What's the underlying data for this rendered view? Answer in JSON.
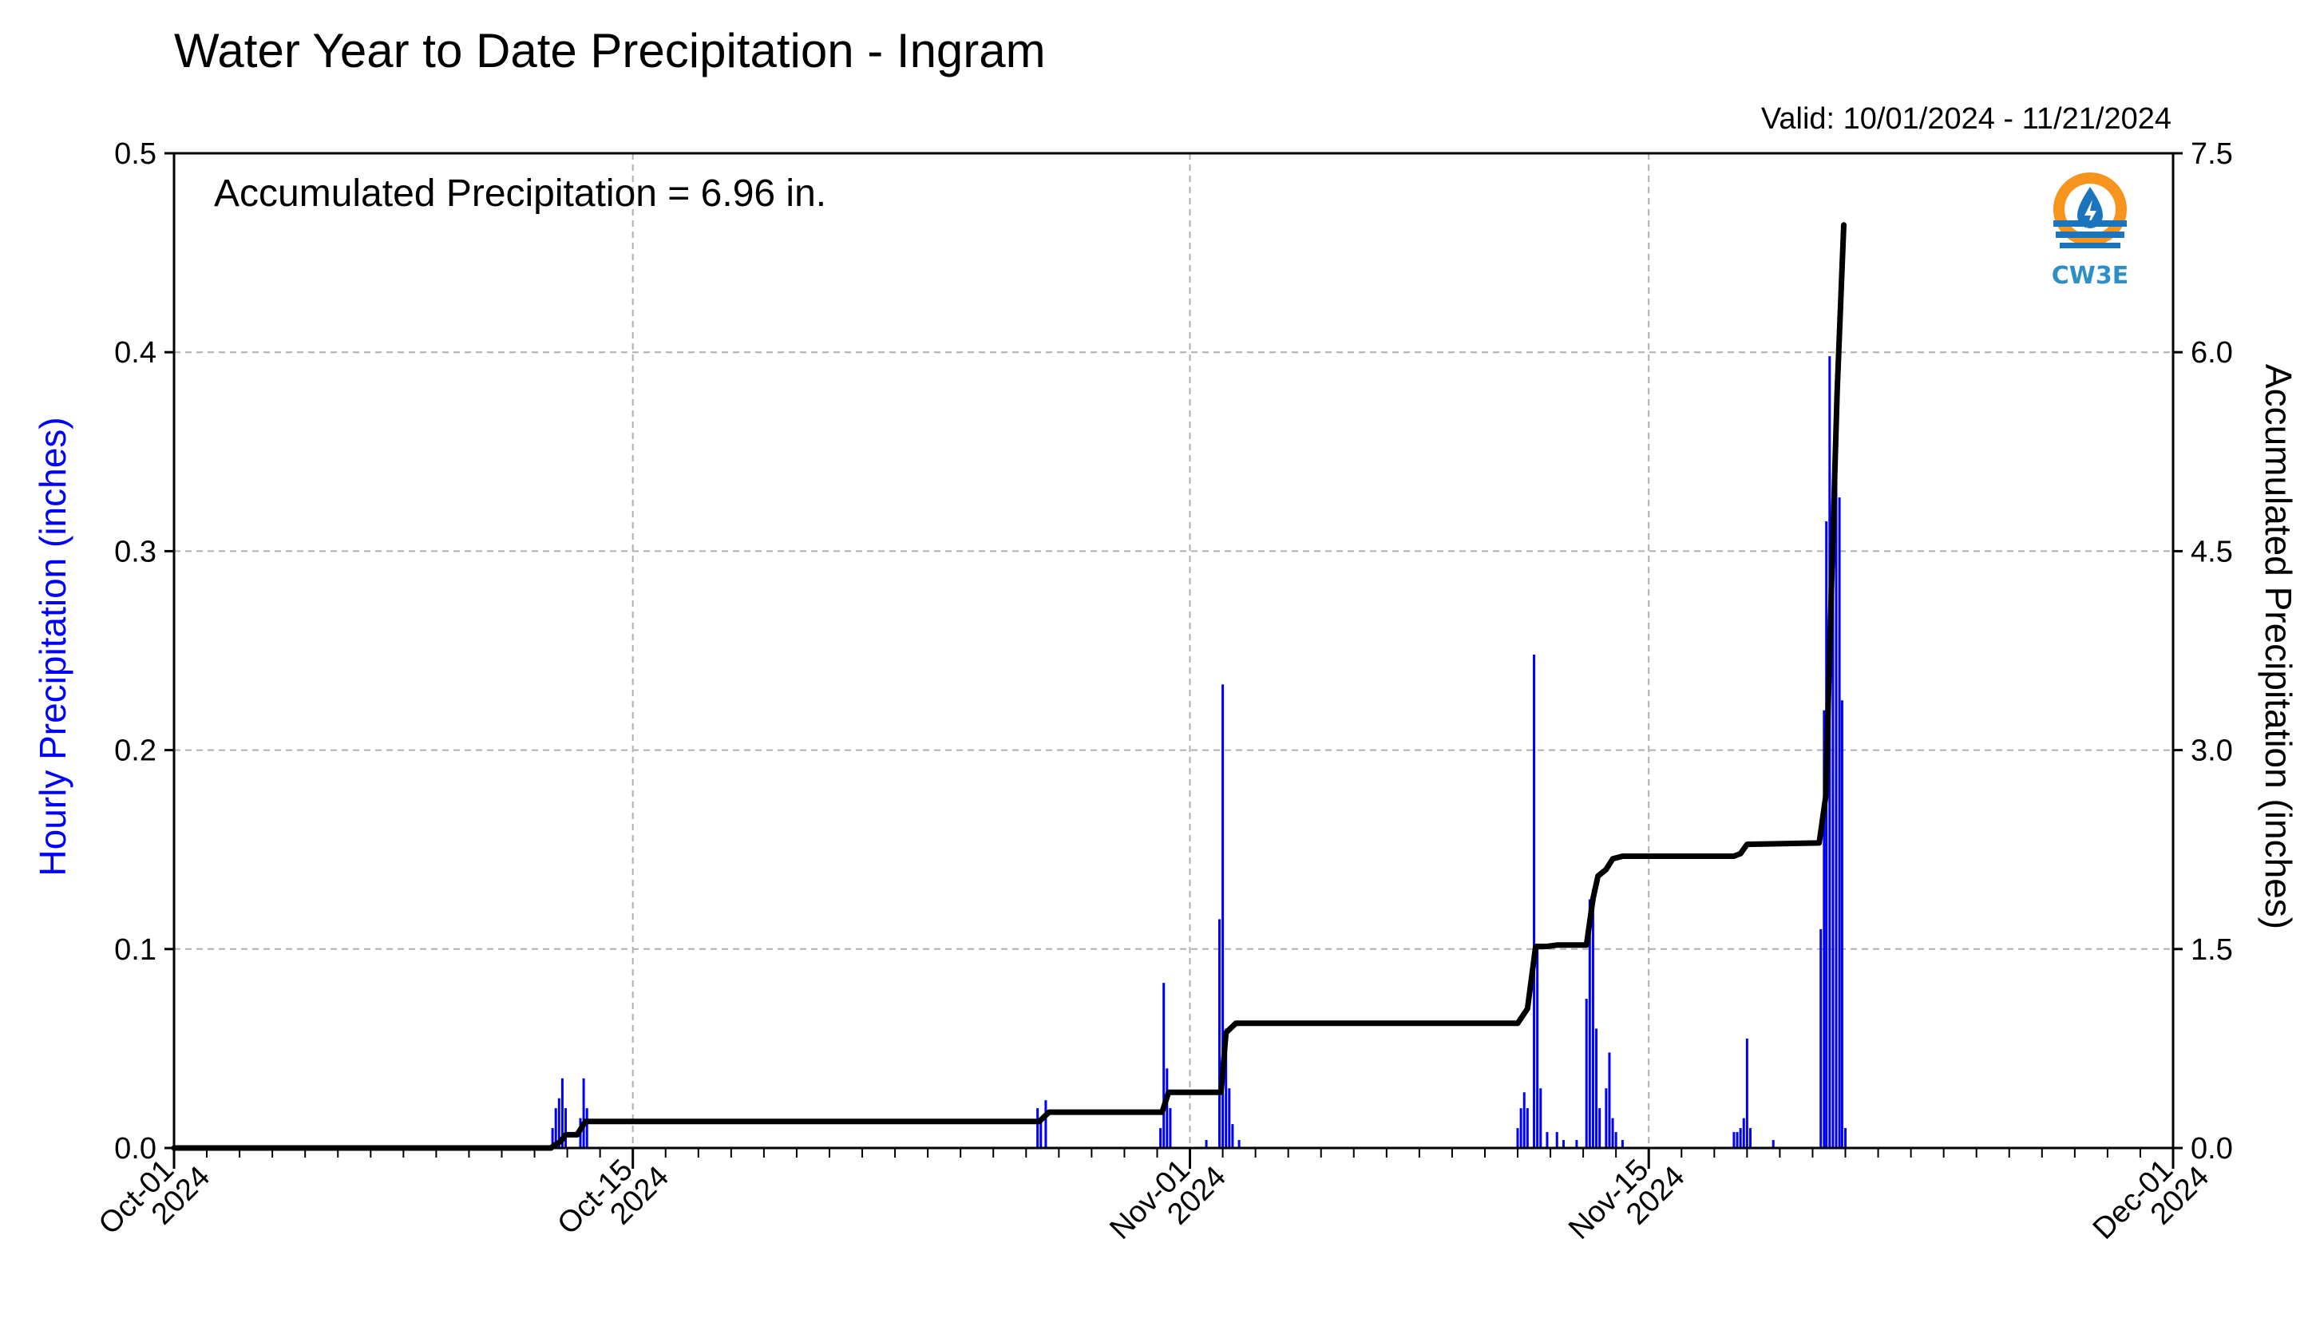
{
  "chart_data": {
    "type": "bar+line",
    "title": "Water Year to Date Precipitation - Ingram",
    "valid_text": "Valid: 10/01/2024 - 11/21/2024",
    "annotation": "Accumulated Precipitation = 6.96 in.",
    "ylabel_left": "Hourly Precipitation (inches)",
    "ylabel_right": "Accumulated Precipitation (inches)",
    "x_unit": "days since 2024-10-01",
    "xlim": [
      0,
      61
    ],
    "ylim_left": [
      0,
      0.5
    ],
    "ylim_right": [
      0,
      7.5
    ],
    "yticks_left": [
      "0.0",
      "0.1",
      "0.2",
      "0.3",
      "0.4",
      "0.5"
    ],
    "yticks_right": [
      "0.0",
      "1.5",
      "3.0",
      "4.5",
      "6.0",
      "7.5"
    ],
    "xticks": [
      {
        "x": 0,
        "label1": "Oct-01",
        "label2": "2024"
      },
      {
        "x": 14,
        "label1": "Oct-15",
        "label2": "2024"
      },
      {
        "x": 31,
        "label1": "Nov-01",
        "label2": "2024"
      },
      {
        "x": 45,
        "label1": "Nov-15",
        "label2": "2024"
      },
      {
        "x": 61,
        "label1": "Dec-01",
        "label2": "2024"
      }
    ],
    "grid": true,
    "colors": {
      "hourly": "#0000ff",
      "accumulated": "#000000",
      "grid": "#b0b0b0"
    },
    "series": [
      {
        "name": "Hourly Precipitation",
        "kind": "bar",
        "points": [
          [
            11.55,
            0.01
          ],
          [
            11.65,
            0.02
          ],
          [
            11.75,
            0.025
          ],
          [
            11.85,
            0.035
          ],
          [
            11.95,
            0.02
          ],
          [
            12.4,
            0.015
          ],
          [
            12.5,
            0.035
          ],
          [
            12.6,
            0.02
          ],
          [
            26.35,
            0.02
          ],
          [
            26.45,
            0.015
          ],
          [
            26.6,
            0.024
          ],
          [
            30.1,
            0.01
          ],
          [
            30.2,
            0.083
          ],
          [
            30.3,
            0.04
          ],
          [
            30.4,
            0.02
          ],
          [
            31.5,
            0.004
          ],
          [
            31.9,
            0.115
          ],
          [
            32.0,
            0.233
          ],
          [
            32.1,
            0.06
          ],
          [
            32.2,
            0.03
          ],
          [
            32.3,
            0.012
          ],
          [
            32.5,
            0.004
          ],
          [
            41.0,
            0.01
          ],
          [
            41.1,
            0.02
          ],
          [
            41.2,
            0.028
          ],
          [
            41.3,
            0.02
          ],
          [
            41.5,
            0.248
          ],
          [
            41.6,
            0.1
          ],
          [
            41.7,
            0.03
          ],
          [
            41.9,
            0.008
          ],
          [
            42.2,
            0.008
          ],
          [
            42.4,
            0.004
          ],
          [
            42.8,
            0.004
          ],
          [
            43.1,
            0.075
          ],
          [
            43.2,
            0.125
          ],
          [
            43.3,
            0.13
          ],
          [
            43.4,
            0.06
          ],
          [
            43.5,
            0.02
          ],
          [
            43.7,
            0.03
          ],
          [
            43.8,
            0.048
          ],
          [
            43.9,
            0.015
          ],
          [
            44.0,
            0.008
          ],
          [
            44.2,
            0.004
          ],
          [
            47.6,
            0.008
          ],
          [
            47.7,
            0.008
          ],
          [
            47.8,
            0.01
          ],
          [
            47.9,
            0.015
          ],
          [
            48.0,
            0.055
          ],
          [
            48.1,
            0.01
          ],
          [
            48.8,
            0.004
          ],
          [
            50.25,
            0.11
          ],
          [
            50.35,
            0.22
          ],
          [
            50.42,
            0.315
          ],
          [
            50.52,
            0.398
          ],
          [
            50.62,
            0.3
          ],
          [
            50.72,
            0.338
          ],
          [
            50.82,
            0.327
          ],
          [
            50.9,
            0.225
          ],
          [
            51.0,
            0.01
          ]
        ]
      },
      {
        "name": "Accumulated Precipitation",
        "kind": "line",
        "points": [
          [
            0,
            0.0
          ],
          [
            11.5,
            0.0
          ],
          [
            11.6,
            0.02
          ],
          [
            11.8,
            0.05
          ],
          [
            11.95,
            0.1
          ],
          [
            12.3,
            0.1
          ],
          [
            12.55,
            0.2
          ],
          [
            26.4,
            0.2
          ],
          [
            26.7,
            0.27
          ],
          [
            30.15,
            0.27
          ],
          [
            30.35,
            0.42
          ],
          [
            31.95,
            0.42
          ],
          [
            32.1,
            0.87
          ],
          [
            32.4,
            0.94
          ],
          [
            41.0,
            0.94
          ],
          [
            41.3,
            1.05
          ],
          [
            41.55,
            1.52
          ],
          [
            41.9,
            1.52
          ],
          [
            42.2,
            1.53
          ],
          [
            43.1,
            1.53
          ],
          [
            43.3,
            1.88
          ],
          [
            43.45,
            2.05
          ],
          [
            43.7,
            2.1
          ],
          [
            43.9,
            2.18
          ],
          [
            44.2,
            2.2
          ],
          [
            47.6,
            2.2
          ],
          [
            47.8,
            2.22
          ],
          [
            48.0,
            2.29
          ],
          [
            50.2,
            2.3
          ],
          [
            50.4,
            2.65
          ],
          [
            50.55,
            4.0
          ],
          [
            50.75,
            5.7
          ],
          [
            50.95,
            6.96
          ]
        ]
      }
    ]
  },
  "logo": {
    "text": "CW3E",
    "colors": {
      "sun": "#f7941d",
      "water": "#1b75bc",
      "text": "#2e8fc6"
    }
  }
}
